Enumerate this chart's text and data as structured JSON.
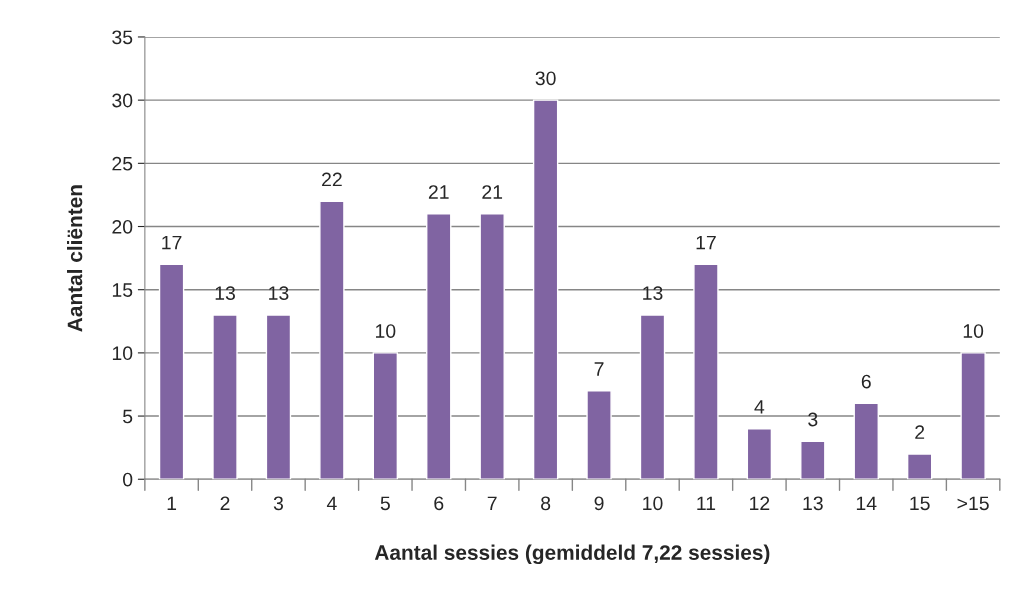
{
  "chart_data": {
    "type": "bar",
    "categories": [
      "1",
      "2",
      "3",
      "4",
      "5",
      "6",
      "7",
      "8",
      "9",
      "10",
      "11",
      "12",
      "13",
      "14",
      "15",
      ">15"
    ],
    "values": [
      17,
      13,
      13,
      22,
      10,
      21,
      21,
      30,
      7,
      13,
      17,
      4,
      3,
      6,
      2,
      10
    ],
    "color": "#8064a2",
    "xlabel": "Aantal sessies (gemiddeld 7,22 sessies)",
    "ylabel": "Aantal cliënten",
    "ylim": [
      0,
      35
    ],
    "yticks": [
      0,
      5,
      10,
      15,
      20,
      25,
      30,
      35
    ],
    "grid": "y",
    "data_labels": true,
    "legend": false
  }
}
